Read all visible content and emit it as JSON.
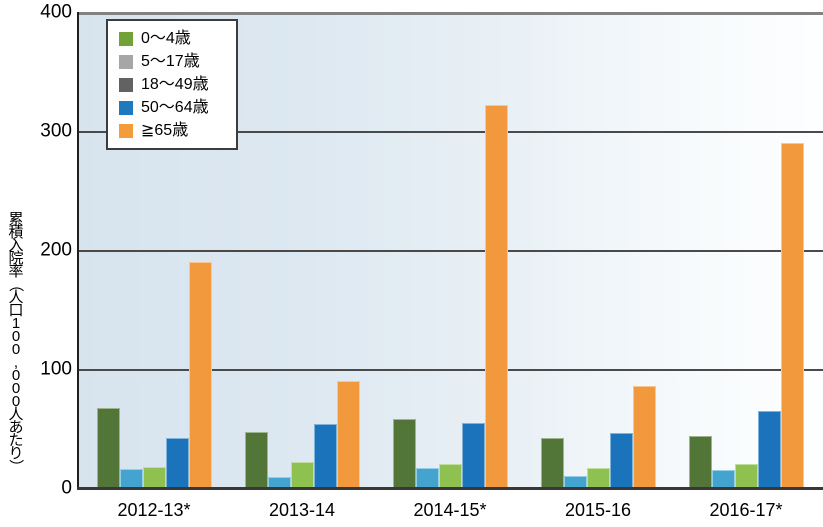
{
  "chart_data": {
    "type": "bar",
    "title": "",
    "xlabel": "",
    "ylabel": "累積入院率（人口100,000人あたり）",
    "ylim": [
      0,
      400
    ],
    "yticks": [
      0,
      100,
      200,
      300,
      400
    ],
    "grid": "horizontal gridlines at each y tick",
    "legend_position": "top-left inside plot, white box with dark border",
    "plot_background": "light blue fading to white from left to right",
    "categories": [
      "2012-13*",
      "2013-14",
      "2014-15*",
      "2015-16",
      "2016-17*"
    ],
    "series": [
      {
        "name": "0〜4歳",
        "bar_color": "#527538",
        "legend_swatch_color": "#72a135",
        "values": [
          67,
          47,
          58,
          42,
          44
        ]
      },
      {
        "name": "5〜17歳",
        "bar_color": "#42a4cf",
        "legend_swatch_color": "#a6a6a6",
        "values": [
          16,
          9,
          17,
          10,
          15
        ]
      },
      {
        "name": "18〜49歳",
        "bar_color": "#8ec150",
        "legend_swatch_color": "#626262",
        "values": [
          18,
          22,
          20,
          17,
          20
        ]
      },
      {
        "name": "50〜64歳",
        "bar_color": "#1b74bb",
        "legend_swatch_color": "#1e79bd",
        "values": [
          42,
          54,
          55,
          46,
          65
        ]
      },
      {
        "name": "≧65歳",
        "bar_color": "#f3993d",
        "legend_swatch_color": "#f49c3a",
        "values": [
          190,
          90,
          322,
          86,
          290
        ]
      }
    ]
  }
}
